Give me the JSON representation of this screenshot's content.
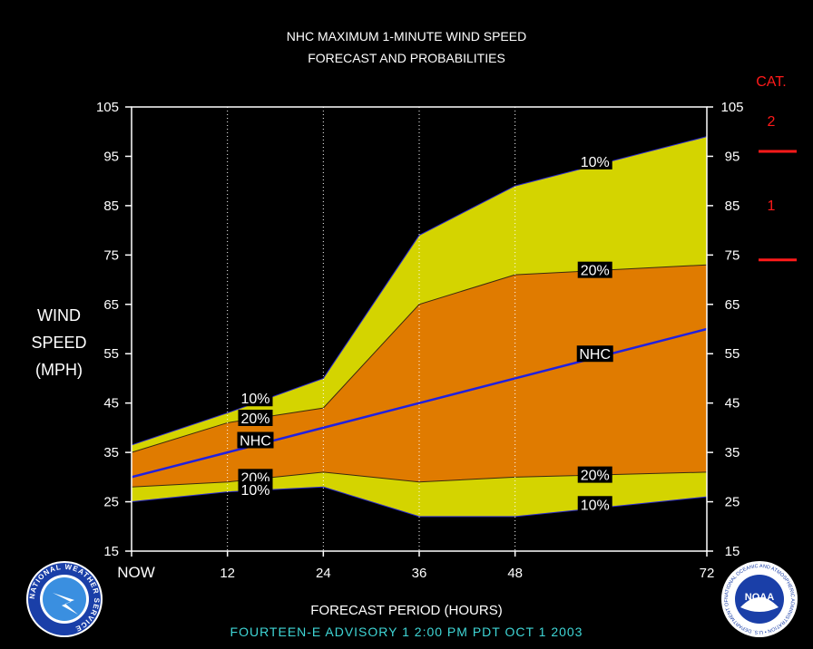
{
  "title_line1": "NHC MAXIMUM 1-MINUTE WIND SPEED",
  "title_line2": "FORECAST AND PROBABILITIES",
  "ylabel_lines": [
    "WIND",
    "SPEED",
    "(MPH)"
  ],
  "xlabel": "FORECAST PERIOD (HOURS)",
  "footer": "FOURTEEN-E   ADVISORY  1 2:00  PM  PDT  OCT  1  2003",
  "category_labels": {
    "title": "CAT.",
    "cat2": "2",
    "cat1": "1"
  },
  "logos": {
    "nws": "NATIONAL WEATHER SERVICE",
    "noaa": "NOAA",
    "noaa_ring": "NATIONAL OCEANIC AND ATMOSPHERIC ADMINISTRATION • U.S. DEPARTMENT OF COMMERCE"
  },
  "colors": {
    "outer_band": "#d4d400",
    "inner_band": "#e07b00",
    "nhc_line": "#2020e0",
    "cat_marks": "#ff1a1a",
    "footer": "#3fd6d6"
  },
  "chart_data": {
    "type": "area",
    "x": [
      0,
      12,
      24,
      36,
      48,
      72
    ],
    "x_tick_labels": [
      "NOW",
      "12",
      "24",
      "36",
      "48",
      "72"
    ],
    "y_ticks": [
      15,
      25,
      35,
      45,
      55,
      65,
      75,
      85,
      95,
      105
    ],
    "ylim": [
      15,
      105
    ],
    "xlim": [
      0,
      72
    ],
    "grid": "vertical dotted at forecast hours",
    "series": {
      "upper10": [
        36.5,
        43,
        50,
        79,
        89,
        99
      ],
      "upper20": [
        35,
        41,
        44,
        65,
        71,
        73
      ],
      "nhc": [
        30,
        35,
        40,
        45,
        50,
        60
      ],
      "lower20": [
        28,
        29,
        31,
        29,
        30,
        31
      ],
      "lower10": [
        25,
        27,
        28,
        22,
        22,
        26
      ]
    },
    "labels": [
      {
        "text": "10%",
        "x": 15.5,
        "y": 46
      },
      {
        "text": "20%",
        "x": 15.5,
        "y": 42
      },
      {
        "text": "NHC",
        "x": 15.5,
        "y": 37.5
      },
      {
        "text": "20%",
        "x": 15.5,
        "y": 30
      },
      {
        "text": "10%",
        "x": 15.5,
        "y": 27.5
      },
      {
        "text": "10%",
        "x": 58,
        "y": 94
      },
      {
        "text": "20%",
        "x": 58,
        "y": 72
      },
      {
        "text": "NHC",
        "x": 58,
        "y": 55
      },
      {
        "text": "20%",
        "x": 58,
        "y": 30.5
      },
      {
        "text": "10%",
        "x": 58,
        "y": 24.5
      }
    ],
    "category_thresholds": [
      96,
      74
    ]
  }
}
